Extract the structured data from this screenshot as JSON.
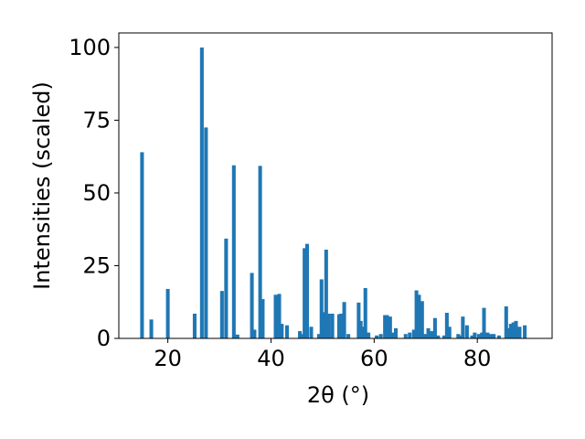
{
  "chart_data": {
    "type": "bar",
    "title": "",
    "xlabel": "2θ (°)",
    "ylabel": "Intensities (scaled)",
    "xlim": [
      10.5,
      94.5
    ],
    "ylim": [
      0,
      105
    ],
    "xticks": [
      20,
      40,
      60,
      80
    ],
    "yticks": [
      0,
      25,
      50,
      75,
      100
    ],
    "grid": false,
    "bar_color": "#1f77b4",
    "bar_width": 0.72,
    "series": [
      {
        "x": [
          15.0,
          16.8,
          20.0,
          25.2,
          26.6,
          27.4,
          30.5,
          31.3,
          32.8,
          33.5,
          36.3,
          36.8,
          37.9,
          38.4,
          40.9,
          41.6,
          42.1,
          43.1,
          45.6,
          46.1,
          46.5,
          47.0,
          47.8,
          49.3,
          49.8,
          50.3,
          50.7,
          51.2,
          51.9,
          53.2,
          53.6,
          54.2,
          55.0,
          57.0,
          57.4,
          57.9,
          58.3,
          58.9,
          60.5,
          61.3,
          62.1,
          62.5,
          63.1,
          63.6,
          64.2,
          66.1,
          66.9,
          67.7,
          68.2,
          68.7,
          69.3,
          69.9,
          70.5,
          71.1,
          71.8,
          72.4,
          73.6,
          74.1,
          74.6,
          76.3,
          76.8,
          77.2,
          78.0,
          79.0,
          79.5,
          80.3,
          80.9,
          81.3,
          82.0,
          82.6,
          83.2,
          84.2,
          85.6,
          86.0,
          86.5,
          87.0,
          87.5,
          88.2,
          89.2
        ],
        "values": [
          64,
          6.5,
          17,
          8.5,
          100,
          72.5,
          16.3,
          34.3,
          59.5,
          1.3,
          22.5,
          3,
          59.3,
          13.5,
          15,
          15.3,
          5,
          4.5,
          2.5,
          1.5,
          31,
          32.5,
          4,
          1.5,
          20.3,
          9,
          30.5,
          8.5,
          8.5,
          8.3,
          8.5,
          12.5,
          1.5,
          12.3,
          6,
          4,
          17.3,
          2,
          1,
          1.5,
          8,
          8,
          7.5,
          2,
          3.5,
          1.5,
          2,
          3,
          16.5,
          15,
          12.8,
          1.5,
          3.5,
          2.5,
          7,
          1,
          1,
          8.8,
          4,
          1.5,
          1,
          7.5,
          4.5,
          1,
          2,
          1.5,
          2,
          10.5,
          2,
          1.5,
          1.5,
          1,
          11,
          3.5,
          5,
          5.5,
          6,
          4,
          4.5
        ]
      }
    ]
  }
}
